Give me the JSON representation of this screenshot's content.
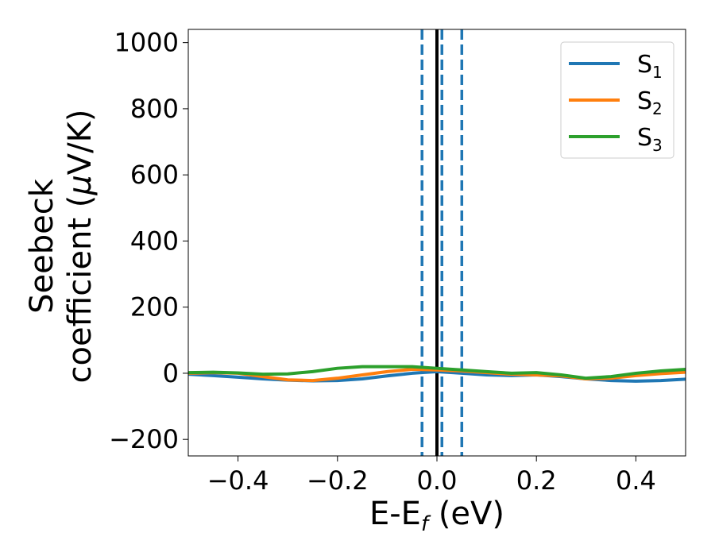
{
  "chart_data": {
    "type": "line",
    "xlabel": {
      "main": "E-E",
      "sub": "f",
      "unit": " (eV)"
    },
    "ylabel": {
      "line1": "Seebeck",
      "line2": "coefficient  (",
      "mu": "μ",
      "line2_end": "V/K)"
    },
    "xlim": [
      -0.5,
      0.5
    ],
    "ylim": [
      -250,
      1040
    ],
    "xticks": [
      -0.4,
      -0.2,
      0.0,
      0.2,
      0.4
    ],
    "xtick_labels": [
      "−0.4",
      "−0.2",
      "0.0",
      "0.2",
      "0.4"
    ],
    "yticks": [
      -200,
      0,
      200,
      400,
      600,
      800,
      1000
    ],
    "ytick_labels": [
      "−200",
      "0",
      "200",
      "400",
      "600",
      "800",
      "1000"
    ],
    "grid": false,
    "legend_position": "top-right",
    "series": [
      {
        "name": "S",
        "subscript": "1",
        "color": "#1f77b4",
        "x": [
          -0.5,
          -0.45,
          -0.4,
          -0.35,
          -0.3,
          -0.25,
          -0.2,
          -0.15,
          -0.1,
          -0.05,
          0.0,
          0.05,
          0.1,
          0.15,
          0.2,
          0.25,
          0.3,
          0.35,
          0.4,
          0.45,
          0.5
        ],
        "y": [
          -3,
          -7,
          -12,
          -17,
          -21,
          -23,
          -22,
          -17,
          -8,
          0,
          5,
          0,
          -5,
          -7,
          -5,
          -10,
          -17,
          -22,
          -24,
          -22,
          -18
        ]
      },
      {
        "name": "S",
        "subscript": "2",
        "color": "#ff7f0e",
        "x": [
          -0.5,
          -0.45,
          -0.4,
          -0.35,
          -0.3,
          -0.25,
          -0.2,
          -0.15,
          -0.1,
          -0.05,
          0.0,
          0.05,
          0.1,
          0.15,
          0.2,
          0.25,
          0.3,
          0.35,
          0.4,
          0.45,
          0.5
        ],
        "y": [
          0,
          2,
          0,
          -10,
          -20,
          -22,
          -15,
          -5,
          5,
          12,
          10,
          7,
          2,
          -3,
          -5,
          -8,
          -17,
          -15,
          -7,
          -1,
          3
        ]
      },
      {
        "name": "S",
        "subscript": "3",
        "color": "#2ca02c",
        "x": [
          -0.5,
          -0.45,
          -0.4,
          -0.35,
          -0.3,
          -0.25,
          -0.2,
          -0.15,
          -0.1,
          -0.05,
          0.0,
          0.05,
          0.1,
          0.15,
          0.2,
          0.25,
          0.3,
          0.35,
          0.4,
          0.45,
          0.5
        ],
        "y": [
          2,
          3,
          1,
          -3,
          -2,
          5,
          15,
          20,
          20,
          20,
          15,
          10,
          5,
          0,
          2,
          -5,
          -15,
          -10,
          0,
          7,
          12
        ]
      }
    ],
    "vlines": [
      {
        "x": -0.03,
        "style": "dashed",
        "color": "#1f77b4"
      },
      {
        "x": 0.0,
        "style": "solid",
        "color": "#000000"
      },
      {
        "x": 0.01,
        "style": "dashed",
        "color": "#1f77b4"
      },
      {
        "x": 0.05,
        "style": "dashed",
        "color": "#1f77b4"
      }
    ]
  }
}
